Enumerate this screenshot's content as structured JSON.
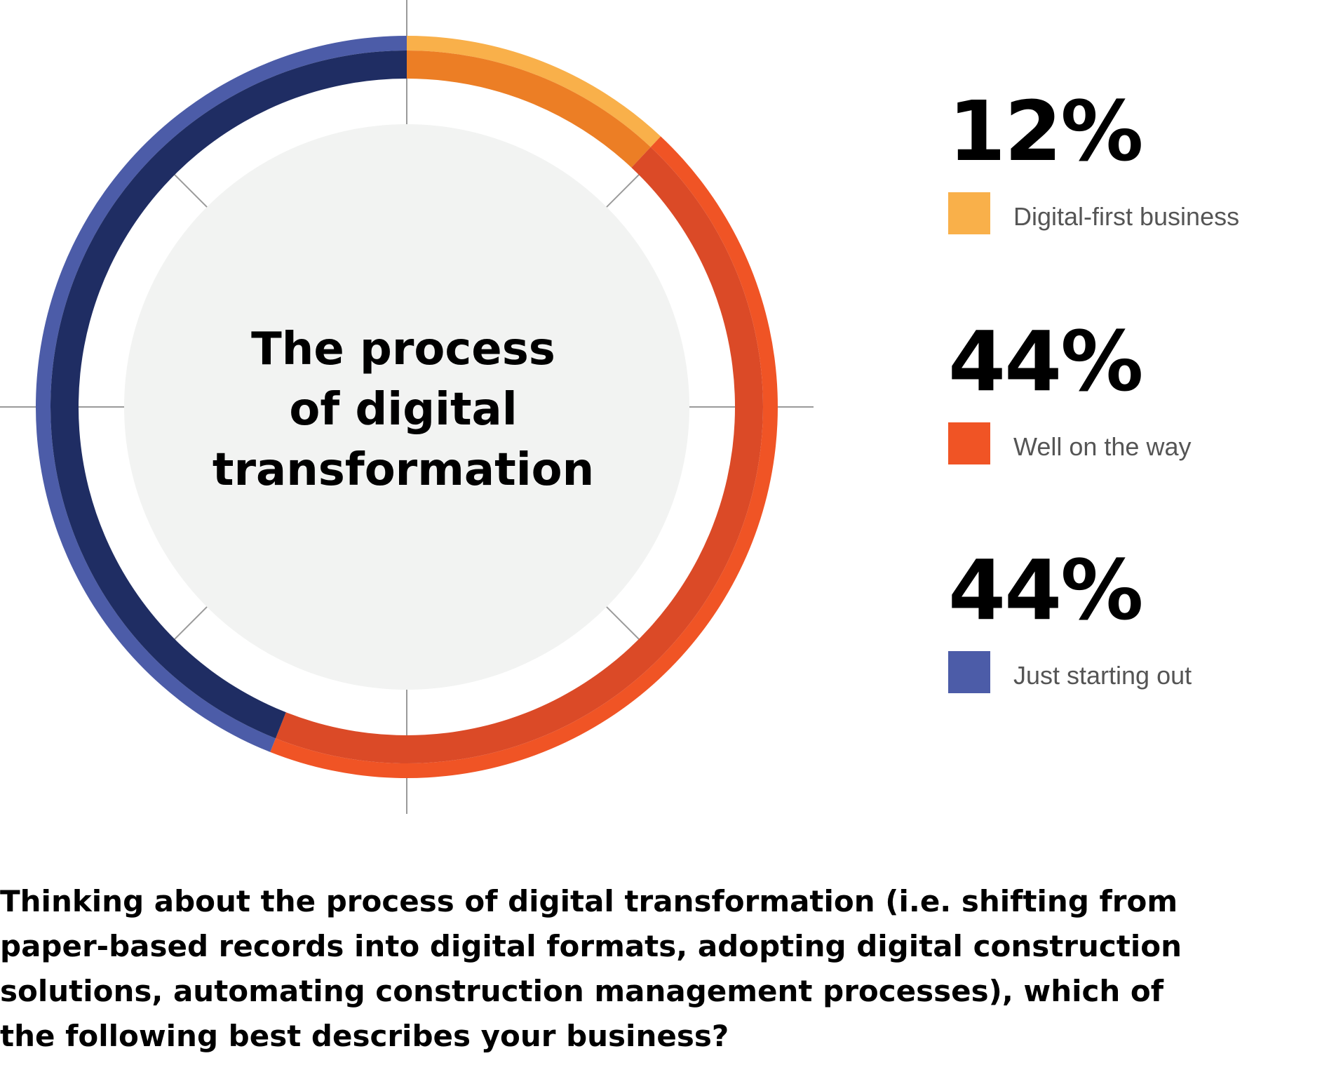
{
  "chart_data": {
    "type": "pie",
    "title": "The process of digital transformation",
    "title_lines": [
      "The process",
      "of digital",
      "transformation"
    ],
    "slices": [
      {
        "label": "Digital-first business",
        "value": 12,
        "display": "12%",
        "color": "#F9B04A",
        "inner_color": "#EC7E25"
      },
      {
        "label": "Well on the way",
        "value": 44,
        "display": "44%",
        "color": "#F05425",
        "inner_color": "#DB4A27"
      },
      {
        "label": "Just starting out",
        "value": 44,
        "display": "44%",
        "color": "#4C5CA8",
        "inner_color": "#1F2D63"
      }
    ],
    "legend_position": "right"
  },
  "question": "Thinking about the process of digital transformation (i.e. shifting from paper-based records into digital formats, adopting digital construction solutions, automating construction management processes), which of the following best describes your business?",
  "colors": {
    "inner_disc": "#F2F3F2",
    "guide_lines": "#9A9A9A"
  }
}
